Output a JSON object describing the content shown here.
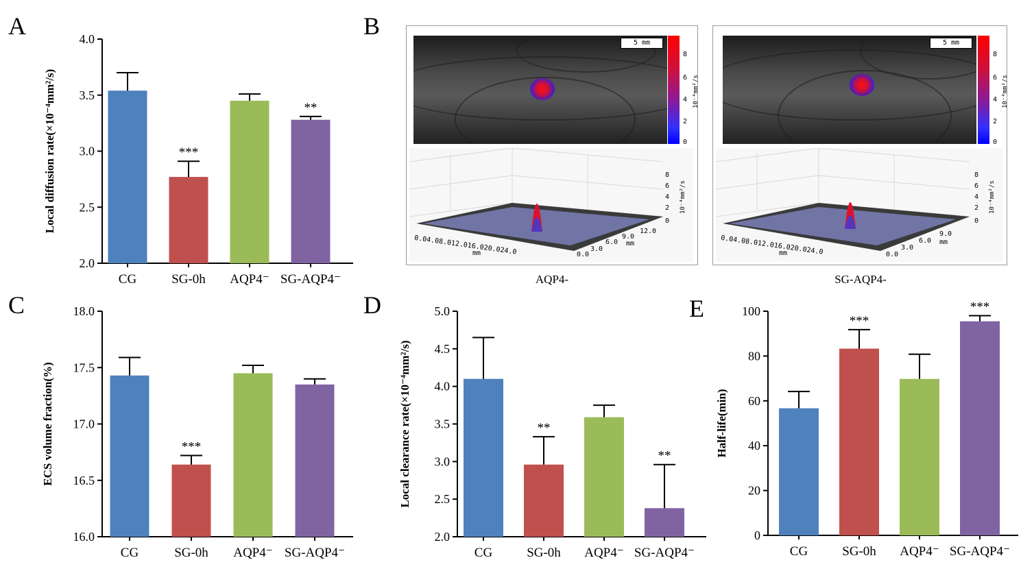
{
  "panel_letters": {
    "A": "A",
    "B": "B",
    "C": "C",
    "D": "D",
    "E": "E"
  },
  "colors": {
    "CG": "#4f81bd",
    "SG-0h": "#c0504d",
    "AQP4-": "#9bbb59",
    "SG-AQP4-": "#8064a2"
  },
  "chart_data": [
    {
      "id": "A",
      "type": "bar",
      "ylabel": "Local  diffusion rate(×10⁻⁴mm²/s)",
      "ylim": [
        2.0,
        4.0
      ],
      "yticks": [
        "2.0",
        "2.5",
        "3.0",
        "3.5",
        "4.0"
      ],
      "categories": [
        "CG",
        "SG-0h",
        "AQP4⁻",
        "SG-AQP4⁻"
      ],
      "values": [
        3.54,
        2.77,
        3.45,
        3.28
      ],
      "errors": [
        0.16,
        0.14,
        0.06,
        0.03
      ],
      "annotations": [
        "",
        "***",
        "",
        "**"
      ]
    },
    {
      "id": "C",
      "type": "bar",
      "ylabel": "ECS volume fraction(%)",
      "ylim": [
        16.0,
        18.0
      ],
      "yticks": [
        "16.0",
        "16.5",
        "17.0",
        "17.5",
        "18.0"
      ],
      "categories": [
        "CG",
        "SG-0h",
        "AQP4⁻",
        "SG-AQP4⁻"
      ],
      "values": [
        17.43,
        16.64,
        17.45,
        17.35
      ],
      "errors": [
        0.16,
        0.08,
        0.07,
        0.05
      ],
      "annotations": [
        "",
        "***",
        "",
        ""
      ]
    },
    {
      "id": "D",
      "type": "bar",
      "ylabel": "Local  clearance rate(×10⁻⁴mm²/s)",
      "ylim": [
        2.0,
        5.0
      ],
      "yticks": [
        "2.0",
        "2.5",
        "3.0",
        "3.5",
        "4.0",
        "4.5",
        "5.0"
      ],
      "categories": [
        "CG",
        "SG-0h",
        "AQP4⁻",
        "SG-AQP4⁻"
      ],
      "values": [
        4.1,
        2.96,
        3.59,
        2.38
      ],
      "errors": [
        0.55,
        0.37,
        0.16,
        0.58
      ],
      "annotations": [
        "",
        "**",
        "",
        "**"
      ]
    },
    {
      "id": "E",
      "type": "bar",
      "ylabel": "Half-life(min)",
      "ylim": [
        0,
        100
      ],
      "yticks": [
        "0",
        "20",
        "40",
        "60",
        "80",
        "100"
      ],
      "categories": [
        "CG",
        "SG-0h",
        "AQP4⁻",
        "SG-AQP4⁻"
      ],
      "values": [
        56.7,
        83.3,
        69.8,
        95.5
      ],
      "errors": [
        7.5,
        8.5,
        11.0,
        2.5
      ],
      "annotations": [
        "",
        "***",
        "",
        "***"
      ]
    }
  ],
  "panel_B": {
    "captions": [
      "AQP4-",
      "SG-AQP4-"
    ],
    "scalebar": "5 mm",
    "colorbar_ticks": [
      "8",
      "6",
      "4",
      "2",
      "0"
    ],
    "colorbar_label": "10⁻⁴mm²/s",
    "surface_z_ticks": [
      "8",
      "6",
      "4",
      "2",
      "0"
    ],
    "surface_z_label": "10⁻⁴mm²/s",
    "surface_x_ticks": "0.04.08.012.016.020.024.0",
    "surface_x_label": "mm",
    "left_y_ticks": [
      "12.0",
      "9.0",
      "6.0",
      "3.0",
      "0.0"
    ],
    "right_y_ticks": [
      "9.0",
      "6.0",
      "3.0",
      "0.0"
    ],
    "surface_y_label": "mm"
  }
}
